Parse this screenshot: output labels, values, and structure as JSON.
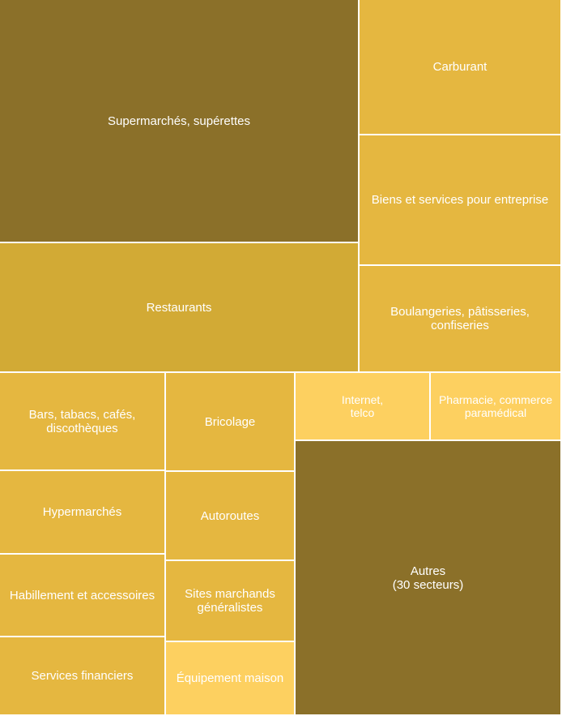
{
  "chart_data": {
    "type": "treemap",
    "title": "",
    "colors": {
      "dark": "#8b7029",
      "mid": "#d2aa35",
      "light": "#e5b740",
      "pale": "#fdd060",
      "separator": "#ffffff"
    },
    "cells": [
      {
        "label": "Supermarchés, supérettes",
        "value": 18.5,
        "color": "#8b7029"
      },
      {
        "label": "Restaurants",
        "value": 9.8,
        "color": "#d2aa35"
      },
      {
        "label": "Carburant",
        "value": 5.6,
        "color": "#e5b740"
      },
      {
        "label": "Biens et services pour entreprise",
        "value": 5.4,
        "color": "#e5b740"
      },
      {
        "label": "Boulangeries, pâtisseries,\nconfiseries",
        "value": 4.5,
        "color": "#e5b740"
      },
      {
        "label": "Bars, tabacs, cafés,\ndiscothèques",
        "value": 3.3,
        "color": "#e5b740"
      },
      {
        "label": "Hypermarchés",
        "value": 2.9,
        "color": "#e5b740"
      },
      {
        "label": "Habillement et accessoires",
        "value": 2.9,
        "color": "#e5b740"
      },
      {
        "label": "Services financiers",
        "value": 2.7,
        "color": "#e5b740"
      },
      {
        "label": "Bricolage",
        "value": 2.6,
        "color": "#e5b740"
      },
      {
        "label": "Autoroutes",
        "value": 2.3,
        "color": "#e5b740"
      },
      {
        "label": "Sites marchands\ngénéralistes",
        "value": 2.1,
        "color": "#e5b740"
      },
      {
        "label": "Équipement maison",
        "value": 1.9,
        "color": "#fdd060"
      },
      {
        "label": "Internet,\ntelco",
        "value": 1.9,
        "color": "#fdd060"
      },
      {
        "label": "Pharmacie, commerce\nparamédical",
        "value": 2.0,
        "color": "#fdd060"
      },
      {
        "label": "Autres\n(30 secteurs)",
        "value": 16.8,
        "color": "#8b7029"
      }
    ]
  }
}
